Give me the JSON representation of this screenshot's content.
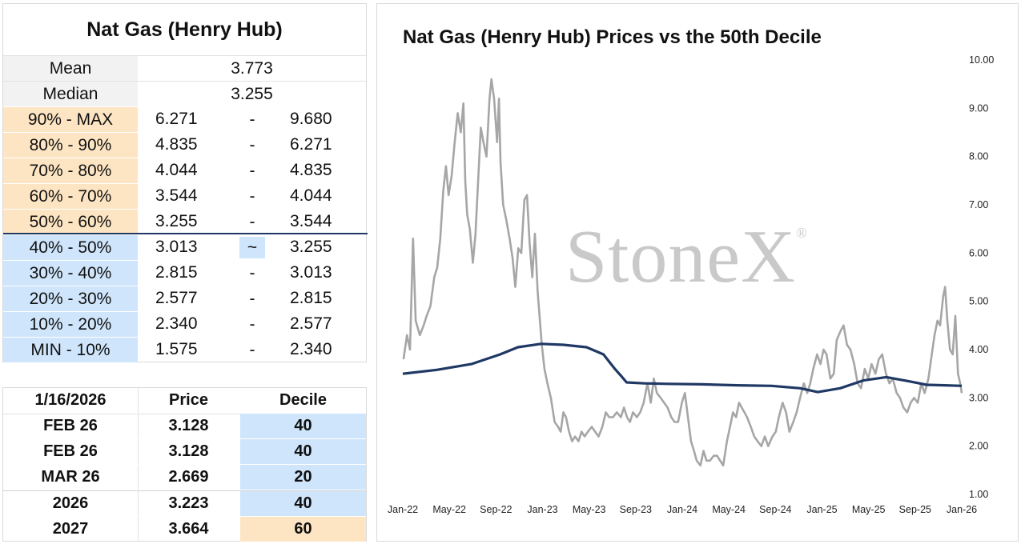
{
  "decile_table": {
    "title": "Nat Gas (Henry Hub)",
    "mean_label": "Mean",
    "mean_value": "3.773",
    "median_label": "Median",
    "median_value": "3.255",
    "rows": [
      {
        "label": "90% - MAX",
        "low": "6.271",
        "sep": "-",
        "high": "9.680",
        "zone": "upper"
      },
      {
        "label": "80% - 90%",
        "low": "4.835",
        "sep": "-",
        "high": "6.271",
        "zone": "upper"
      },
      {
        "label": "70% - 80%",
        "low": "4.044",
        "sep": "-",
        "high": "4.835",
        "zone": "upper"
      },
      {
        "label": "60% - 70%",
        "low": "3.544",
        "sep": "-",
        "high": "4.044",
        "zone": "upper"
      },
      {
        "label": "50% - 60%",
        "low": "3.255",
        "sep": "-",
        "high": "3.544",
        "zone": "upper"
      },
      {
        "label": "40% - 50%",
        "low": "3.013",
        "sep": "~",
        "high": "3.255",
        "zone": "lower",
        "current": true
      },
      {
        "label": "30% - 40%",
        "low": "2.815",
        "sep": "-",
        "high": "3.013",
        "zone": "lower"
      },
      {
        "label": "20% - 30%",
        "low": "2.577",
        "sep": "-",
        "high": "2.815",
        "zone": "lower"
      },
      {
        "label": "10% - 20%",
        "low": "2.340",
        "sep": "-",
        "high": "2.577",
        "zone": "lower"
      },
      {
        "label": "MIN - 10%",
        "low": "1.575",
        "sep": "-",
        "high": "2.340",
        "zone": "lower"
      }
    ]
  },
  "contracts_table": {
    "header": {
      "date": "1/16/2026",
      "price": "Price",
      "decile": "Decile"
    },
    "rows": [
      {
        "contract": "FEB 26",
        "price": "3.128",
        "decile": "40",
        "color": "blue"
      },
      {
        "contract": "FEB 26",
        "price": "3.128",
        "decile": "40",
        "color": "blue"
      },
      {
        "contract": "MAR 26",
        "price": "2.669",
        "decile": "20",
        "color": "blue"
      },
      {
        "contract": "2026",
        "price": "3.223",
        "decile": "40",
        "color": "blue"
      },
      {
        "contract": "2027",
        "price": "3.664",
        "decile": "60",
        "color": "orange"
      }
    ]
  },
  "watermark": "StoneX",
  "watermark_mark": "®",
  "chart_data": {
    "type": "line",
    "title": "Nat Gas (Henry Hub) Prices vs the 50th Decile",
    "xlabel": "",
    "ylabel": "",
    "ylim": [
      1.0,
      10.0
    ],
    "y_ticks": [
      "1.00",
      "2.00",
      "3.00",
      "4.00",
      "5.00",
      "6.00",
      "7.00",
      "8.00",
      "9.00",
      "10.00"
    ],
    "x_ticks": [
      "Jan-22",
      "May-22",
      "Sep-22",
      "Jan-23",
      "May-23",
      "Sep-23",
      "Jan-24",
      "May-24",
      "Sep-24",
      "Jan-25",
      "May-25",
      "Sep-25",
      "Jan-26"
    ],
    "x_range": [
      "2022-01-01",
      "2026-01-16"
    ],
    "grid": false,
    "legend": "none",
    "series": [
      {
        "color": "#a6a6a6",
        "points": [
          [
            "2022-01-03",
            3.8
          ],
          [
            "2022-01-12",
            4.3
          ],
          [
            "2022-01-20",
            4.0
          ],
          [
            "2022-01-28",
            6.3
          ],
          [
            "2022-02-04",
            4.6
          ],
          [
            "2022-02-15",
            4.3
          ],
          [
            "2022-02-25",
            4.5
          ],
          [
            "2022-03-05",
            4.7
          ],
          [
            "2022-03-15",
            4.9
          ],
          [
            "2022-03-25",
            5.5
          ],
          [
            "2022-04-02",
            5.7
          ],
          [
            "2022-04-10",
            6.3
          ],
          [
            "2022-04-18",
            7.3
          ],
          [
            "2022-04-25",
            7.8
          ],
          [
            "2022-05-02",
            7.2
          ],
          [
            "2022-05-10",
            7.6
          ],
          [
            "2022-05-18",
            8.3
          ],
          [
            "2022-05-26",
            8.9
          ],
          [
            "2022-06-03",
            8.5
          ],
          [
            "2022-06-10",
            9.1
          ],
          [
            "2022-06-15",
            7.5
          ],
          [
            "2022-06-20",
            6.8
          ],
          [
            "2022-06-27",
            6.5
          ],
          [
            "2022-07-05",
            5.8
          ],
          [
            "2022-07-12",
            6.4
          ],
          [
            "2022-07-19",
            7.5
          ],
          [
            "2022-07-26",
            8.6
          ],
          [
            "2022-08-02",
            8.3
          ],
          [
            "2022-08-10",
            8.0
          ],
          [
            "2022-08-18",
            9.2
          ],
          [
            "2022-08-23",
            9.6
          ],
          [
            "2022-08-30",
            9.2
          ],
          [
            "2022-09-07",
            8.3
          ],
          [
            "2022-09-12",
            9.2
          ],
          [
            "2022-09-16",
            7.9
          ],
          [
            "2022-09-23",
            7.0
          ],
          [
            "2022-10-01",
            6.7
          ],
          [
            "2022-10-10",
            6.3
          ],
          [
            "2022-10-18",
            5.9
          ],
          [
            "2022-10-25",
            5.3
          ],
          [
            "2022-11-02",
            6.1
          ],
          [
            "2022-11-10",
            6.0
          ],
          [
            "2022-11-18",
            7.1
          ],
          [
            "2022-11-25",
            7.2
          ],
          [
            "2022-12-02",
            6.2
          ],
          [
            "2022-12-09",
            5.5
          ],
          [
            "2022-12-16",
            6.4
          ],
          [
            "2022-12-23",
            5.2
          ],
          [
            "2023-01-03",
            4.1
          ],
          [
            "2023-01-10",
            3.6
          ],
          [
            "2023-01-18",
            3.3
          ],
          [
            "2023-01-27",
            3.0
          ],
          [
            "2023-02-06",
            2.5
          ],
          [
            "2023-02-15",
            2.4
          ],
          [
            "2023-02-22",
            2.3
          ],
          [
            "2023-03-01",
            2.7
          ],
          [
            "2023-03-08",
            2.6
          ],
          [
            "2023-03-16",
            2.3
          ],
          [
            "2023-03-24",
            2.1
          ],
          [
            "2023-04-01",
            2.2
          ],
          [
            "2023-04-10",
            2.1
          ],
          [
            "2023-04-18",
            2.3
          ],
          [
            "2023-04-26",
            2.2
          ],
          [
            "2023-05-05",
            2.3
          ],
          [
            "2023-05-15",
            2.4
          ],
          [
            "2023-05-24",
            2.3
          ],
          [
            "2023-06-02",
            2.2
          ],
          [
            "2023-06-12",
            2.4
          ],
          [
            "2023-06-21",
            2.7
          ],
          [
            "2023-06-30",
            2.6
          ],
          [
            "2023-07-10",
            2.6
          ],
          [
            "2023-07-20",
            2.7
          ],
          [
            "2023-07-31",
            2.6
          ],
          [
            "2023-08-08",
            2.8
          ],
          [
            "2023-08-16",
            2.6
          ],
          [
            "2023-08-24",
            2.5
          ],
          [
            "2023-09-01",
            2.7
          ],
          [
            "2023-09-11",
            2.6
          ],
          [
            "2023-09-20",
            2.7
          ],
          [
            "2023-09-29",
            2.9
          ],
          [
            "2023-10-09",
            3.3
          ],
          [
            "2023-10-18",
            2.9
          ],
          [
            "2023-10-26",
            3.4
          ],
          [
            "2023-11-03",
            3.1
          ],
          [
            "2023-11-13",
            3.0
          ],
          [
            "2023-11-22",
            2.9
          ],
          [
            "2023-12-01",
            2.8
          ],
          [
            "2023-12-11",
            2.6
          ],
          [
            "2023-12-20",
            2.5
          ],
          [
            "2023-12-29",
            2.5
          ],
          [
            "2024-01-08",
            2.9
          ],
          [
            "2024-01-16",
            3.1
          ],
          [
            "2024-01-24",
            2.6
          ],
          [
            "2024-02-01",
            2.1
          ],
          [
            "2024-02-09",
            1.9
          ],
          [
            "2024-02-16",
            1.7
          ],
          [
            "2024-02-26",
            1.6
          ],
          [
            "2024-03-05",
            1.9
          ],
          [
            "2024-03-13",
            1.7
          ],
          [
            "2024-03-22",
            1.7
          ],
          [
            "2024-04-01",
            1.8
          ],
          [
            "2024-04-10",
            1.8
          ],
          [
            "2024-04-18",
            1.7
          ],
          [
            "2024-04-26",
            1.6
          ],
          [
            "2024-05-06",
            2.1
          ],
          [
            "2024-05-14",
            2.4
          ],
          [
            "2024-05-22",
            2.7
          ],
          [
            "2024-05-30",
            2.6
          ],
          [
            "2024-06-07",
            2.9
          ],
          [
            "2024-06-14",
            2.8
          ],
          [
            "2024-06-21",
            2.7
          ],
          [
            "2024-06-28",
            2.6
          ],
          [
            "2024-07-08",
            2.4
          ],
          [
            "2024-07-17",
            2.2
          ],
          [
            "2024-07-26",
            2.1
          ],
          [
            "2024-08-05",
            2.0
          ],
          [
            "2024-08-14",
            2.2
          ],
          [
            "2024-08-23",
            2.0
          ],
          [
            "2024-09-03",
            2.2
          ],
          [
            "2024-09-12",
            2.3
          ],
          [
            "2024-09-20",
            2.6
          ],
          [
            "2024-09-30",
            2.9
          ],
          [
            "2024-10-09",
            2.7
          ],
          [
            "2024-10-18",
            2.3
          ],
          [
            "2024-10-28",
            2.5
          ],
          [
            "2024-11-06",
            2.7
          ],
          [
            "2024-11-15",
            3.0
          ],
          [
            "2024-11-25",
            3.3
          ],
          [
            "2024-12-04",
            3.1
          ],
          [
            "2024-12-12",
            3.3
          ],
          [
            "2024-12-20",
            3.6
          ],
          [
            "2024-12-30",
            3.9
          ],
          [
            "2025-01-08",
            3.7
          ],
          [
            "2025-01-16",
            4.0
          ],
          [
            "2025-01-24",
            3.9
          ],
          [
            "2025-02-03",
            3.4
          ],
          [
            "2025-02-12",
            3.5
          ],
          [
            "2025-02-20",
            4.2
          ],
          [
            "2025-03-03",
            4.4
          ],
          [
            "2025-03-10",
            4.5
          ],
          [
            "2025-03-19",
            4.1
          ],
          [
            "2025-03-28",
            4.0
          ],
          [
            "2025-04-07",
            3.7
          ],
          [
            "2025-04-16",
            3.3
          ],
          [
            "2025-04-25",
            3.2
          ],
          [
            "2025-05-05",
            3.6
          ],
          [
            "2025-05-14",
            3.4
          ],
          [
            "2025-05-23",
            3.7
          ],
          [
            "2025-06-02",
            3.5
          ],
          [
            "2025-06-11",
            3.8
          ],
          [
            "2025-06-20",
            3.9
          ],
          [
            "2025-06-30",
            3.5
          ],
          [
            "2025-07-09",
            3.3
          ],
          [
            "2025-07-18",
            3.4
          ],
          [
            "2025-07-28",
            3.1
          ],
          [
            "2025-08-06",
            3.0
          ],
          [
            "2025-08-15",
            2.8
          ],
          [
            "2025-08-25",
            2.7
          ],
          [
            "2025-09-03",
            2.9
          ],
          [
            "2025-09-12",
            3.0
          ],
          [
            "2025-09-22",
            2.9
          ],
          [
            "2025-10-01",
            3.3
          ],
          [
            "2025-10-10",
            3.1
          ],
          [
            "2025-10-20",
            3.4
          ],
          [
            "2025-10-29",
            3.9
          ],
          [
            "2025-11-05",
            4.3
          ],
          [
            "2025-11-13",
            4.6
          ],
          [
            "2025-11-20",
            4.5
          ],
          [
            "2025-11-28",
            5.1
          ],
          [
            "2025-12-03",
            5.3
          ],
          [
            "2025-12-09",
            4.6
          ],
          [
            "2025-12-16",
            4.0
          ],
          [
            "2025-12-23",
            3.9
          ],
          [
            "2025-12-30",
            4.7
          ],
          [
            "2026-01-06",
            3.5
          ],
          [
            "2026-01-12",
            3.3
          ],
          [
            "2026-01-16",
            3.1
          ]
        ]
      },
      {
        "color": "#1f3864",
        "points": [
          [
            "2022-01-01",
            3.5
          ],
          [
            "2022-04-01",
            3.58
          ],
          [
            "2022-07-01",
            3.7
          ],
          [
            "2022-09-15",
            3.9
          ],
          [
            "2022-11-01",
            4.05
          ],
          [
            "2023-01-01",
            4.12
          ],
          [
            "2023-03-01",
            4.1
          ],
          [
            "2023-05-01",
            4.05
          ],
          [
            "2023-06-15",
            3.9
          ],
          [
            "2023-07-15",
            3.6
          ],
          [
            "2023-08-01",
            3.45
          ],
          [
            "2023-08-15",
            3.32
          ],
          [
            "2023-10-01",
            3.3
          ],
          [
            "2023-12-01",
            3.29
          ],
          [
            "2024-03-01",
            3.28
          ],
          [
            "2024-06-01",
            3.26
          ],
          [
            "2024-09-01",
            3.25
          ],
          [
            "2024-11-15",
            3.2
          ],
          [
            "2025-01-01",
            3.12
          ],
          [
            "2025-03-01",
            3.2
          ],
          [
            "2025-05-01",
            3.36
          ],
          [
            "2025-07-01",
            3.43
          ],
          [
            "2025-09-01",
            3.34
          ],
          [
            "2025-10-15",
            3.27
          ],
          [
            "2025-12-01",
            3.26
          ],
          [
            "2026-01-16",
            3.25
          ]
        ]
      }
    ]
  }
}
